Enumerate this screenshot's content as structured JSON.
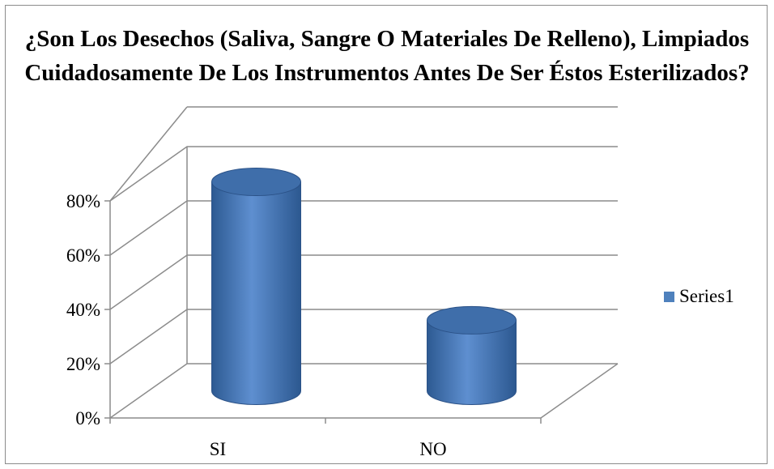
{
  "chart_data": {
    "type": "bar",
    "style": "3d-cylinder",
    "title": "¿Son Los Desechos (Saliva, Sangre O Materiales De Relleno), Limpiados Cuidadosamente De Los Instrumentos Antes De Ser Éstos Esterilizados?",
    "categories": [
      "SI",
      "NO"
    ],
    "series": [
      {
        "name": "Series1",
        "values": [
          0.77,
          0.26
        ],
        "color": "#4f81bd"
      }
    ],
    "yticks": [
      "0%",
      "20%",
      "40%",
      "60%",
      "80%"
    ],
    "ylim": [
      0,
      0.8
    ],
    "grid": true,
    "legend_position": "right"
  }
}
